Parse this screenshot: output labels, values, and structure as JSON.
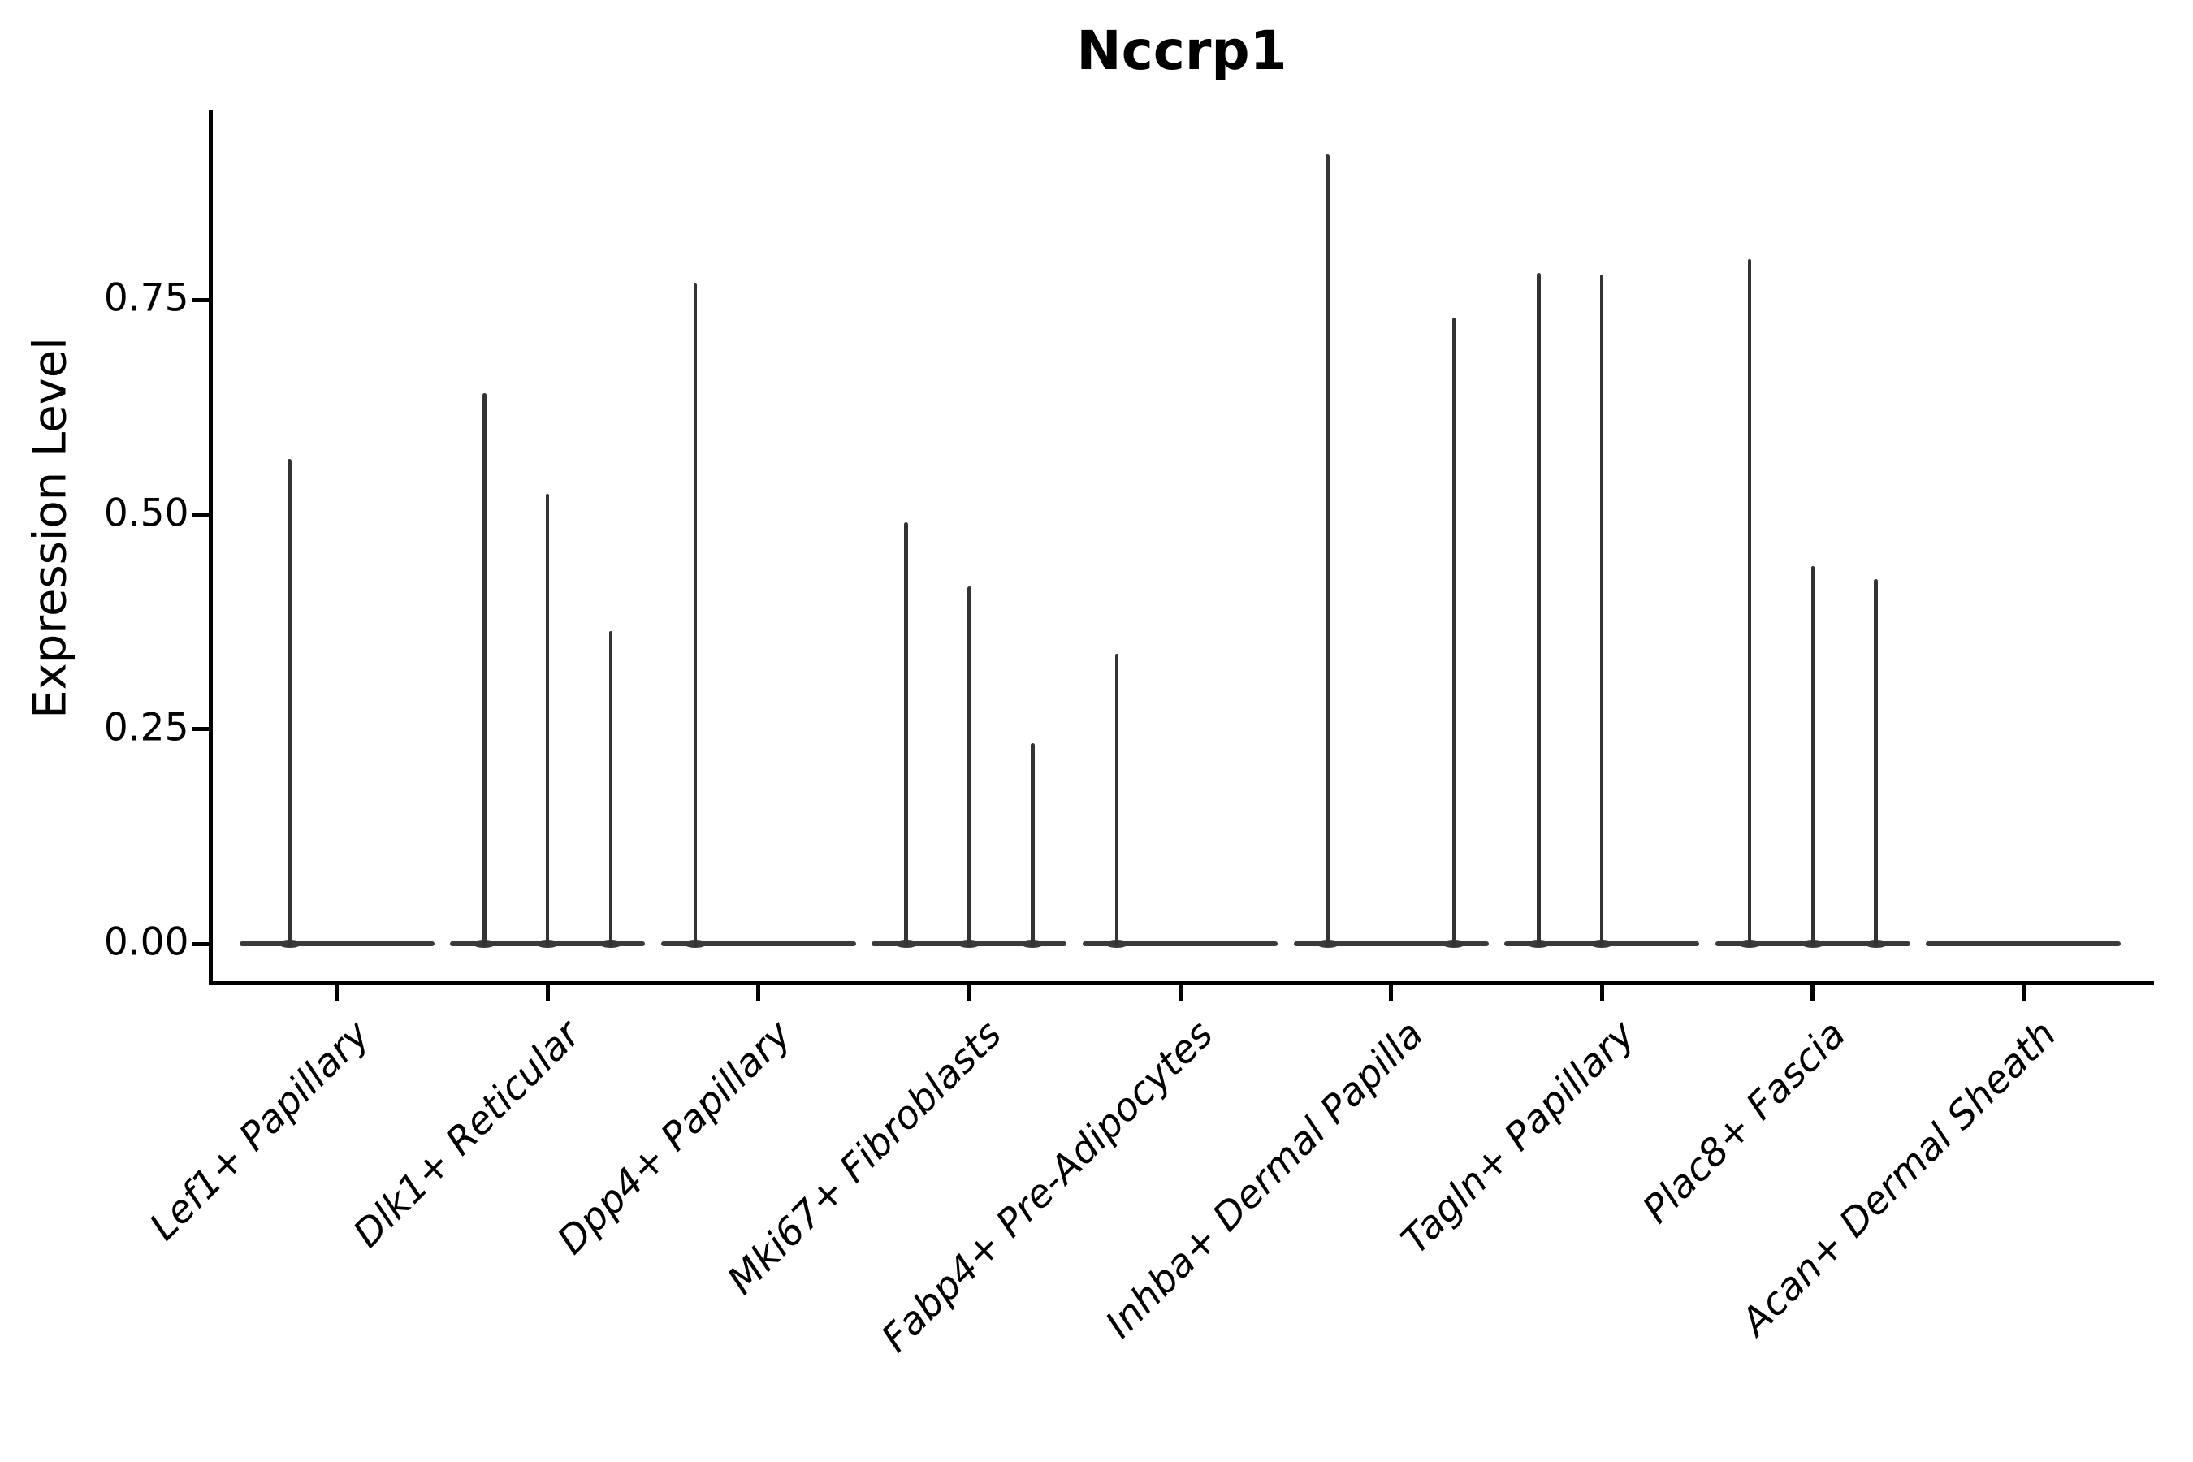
{
  "title": "Nccrp1",
  "chart_data": {
    "type": "violin",
    "title": "Nccrp1",
    "xlabel": "",
    "ylabel": "Expression Level",
    "ylim": [
      -0.045,
      0.97
    ],
    "yticks": [
      0,
      0.25,
      0.5,
      0.75
    ],
    "ytick_labels": [
      "0.00",
      "0.25",
      "0.50",
      "0.75"
    ],
    "grid": "off",
    "legend": "none",
    "violin_color": "#333333",
    "axis_color": "#000000",
    "description": "Violin plot of Nccrp1 expression; most cells at 0 giving flat violins with thin spikes up to the max expression per dodged violin",
    "categories": [
      "Lef1+ Papillary",
      "Dlk1+ Reticular",
      "Dpp4+ Papillary",
      "Mki67+ Fibroblasts",
      "Fabp4+ Pre-Adipocytes",
      "Inhba+ Dermal Papilla",
      "Tagln+ Papillary",
      "Plac8+ Fascia",
      "Acan+ Dermal Sheath"
    ],
    "groups": [
      {
        "category": "Lef1+ Papillary",
        "spikes": [
          {
            "offset_frac": -0.223,
            "max": 0.565
          }
        ]
      },
      {
        "category": "Dlk1+ Reticular",
        "spikes": [
          {
            "offset_frac": -0.3,
            "max": 0.641
          },
          {
            "offset_frac": 0,
            "max": 0.524
          },
          {
            "offset_frac": 0.3,
            "max": 0.364
          }
        ]
      },
      {
        "category": "Dpp4+ Papillary",
        "spikes": [
          {
            "offset_frac": -0.3,
            "max": 0.769
          }
        ]
      },
      {
        "category": "Mki67+ Fibroblasts",
        "spikes": [
          {
            "offset_frac": -0.3,
            "max": 0.491
          },
          {
            "offset_frac": 0,
            "max": 0.416
          },
          {
            "offset_frac": 0.3,
            "max": 0.234
          }
        ]
      },
      {
        "category": "Fabp4+ Pre-Adipocytes",
        "spikes": [
          {
            "offset_frac": -0.3,
            "max": 0.338
          }
        ]
      },
      {
        "category": "Inhba+ Dermal Papilla",
        "spikes": [
          {
            "offset_frac": -0.3,
            "max": 0.92
          },
          {
            "offset_frac": 0.3,
            "max": 0.729
          }
        ]
      },
      {
        "category": "Tagln+ Papillary",
        "spikes": [
          {
            "offset_frac": -0.3,
            "max": 0.781
          },
          {
            "offset_frac": 0,
            "max": 0.78
          }
        ]
      },
      {
        "category": "Plac8+ Fascia",
        "spikes": [
          {
            "offset_frac": -0.3,
            "max": 0.798
          },
          {
            "offset_frac": 0,
            "max": 0.44
          },
          {
            "offset_frac": 0.3,
            "max": 0.425
          }
        ]
      },
      {
        "category": "Acan+ Dermal Sheath",
        "spikes": []
      }
    ]
  }
}
